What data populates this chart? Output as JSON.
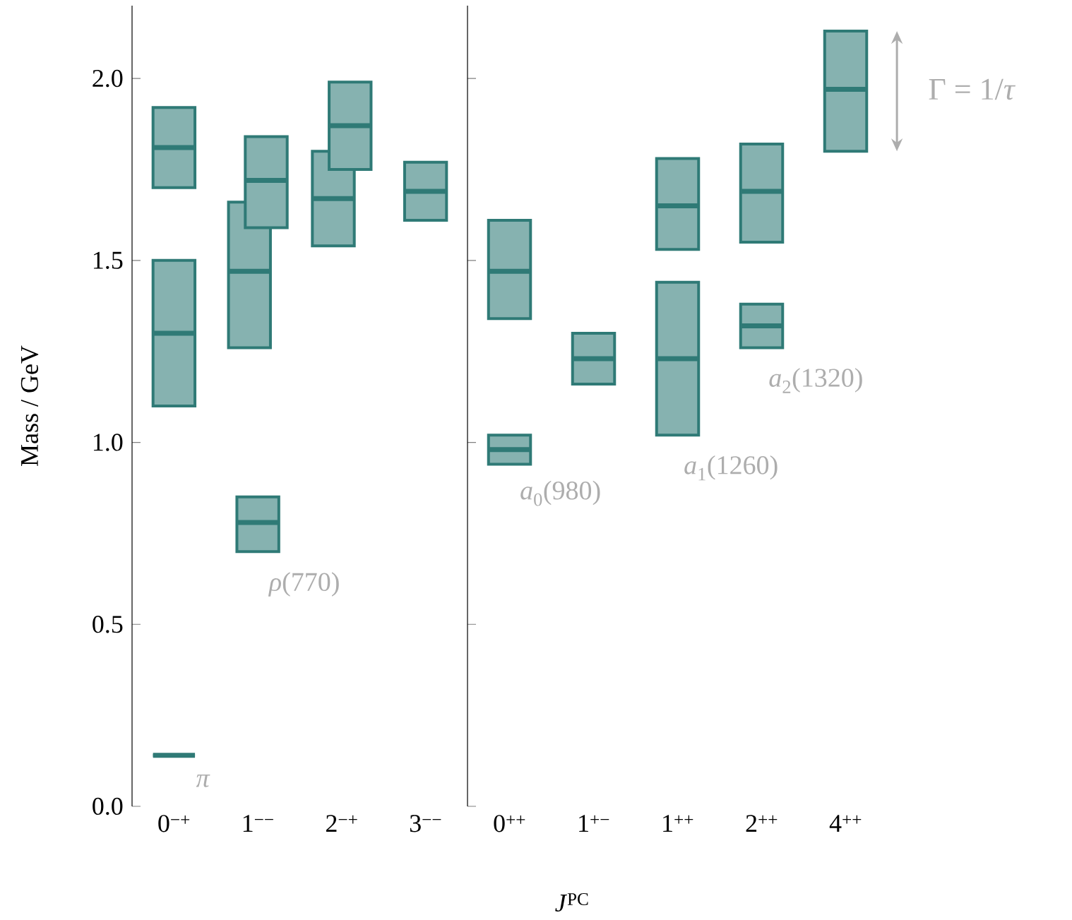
{
  "chart_data": [
    {
      "type": "box",
      "ylabel": "Mass / GeV",
      "categories": [
        "0$^{−+}$",
        "1$^{−−}$",
        "2$^{−+}$",
        "3$^{−−}$"
      ],
      "ylim": [
        0,
        2.2
      ],
      "yticks": [
        {
          "value": 0,
          "label": "0.0"
        },
        {
          "value": 0.5,
          "label": "0.5"
        },
        {
          "value": 1,
          "label": "1.0"
        },
        {
          "value": 1.5,
          "label": "1.5"
        },
        {
          "value": 2,
          "label": "2.0"
        }
      ],
      "series": [
        {
          "color": "#2f7a76",
          "boxes": [
            null,
            {
              "low": 1.26,
              "q1": 1.26,
              "median": 1.47,
              "q3": 1.66,
              "high": 1.66
            },
            {
              "low": 1.54,
              "q1": 1.54,
              "median": 1.67,
              "q3": 1.8,
              "high": 1.8
            },
            null
          ]
        },
        {
          "color": "#2f7a76",
          "boxes": [
            null,
            {
              "low": 1.59,
              "q1": 1.59,
              "median": 1.72,
              "q3": 1.84,
              "high": 1.84
            },
            {
              "low": 1.75,
              "q1": 1.75,
              "median": 1.87,
              "q3": 1.99,
              "high": 1.99
            },
            null
          ]
        },
        {
          "color": "#2f7a76",
          "boxes": [
            {
              "low": 0.14,
              "q1": 0.14,
              "median": 0.14,
              "q3": 0.14,
              "high": 0.14
            },
            {
              "low": 0.7,
              "q1": 0.7,
              "median": 0.78,
              "q3": 0.85,
              "high": 0.85
            },
            null,
            {
              "low": 1.61,
              "q1": 1.61,
              "median": 1.69,
              "q3": 1.77,
              "high": 1.77
            }
          ]
        },
        {
          "color": "#2f7a76",
          "boxes": [
            {
              "low": 1.1,
              "q1": 1.1,
              "median": 1.3,
              "q3": 1.5,
              "high": 1.5
            },
            null,
            null,
            null
          ]
        },
        {
          "color": "#2f7a76",
          "boxes": [
            {
              "low": 1.7,
              "q1": 1.7,
              "median": 1.81,
              "q3": 1.92,
              "high": 1.92
            },
            null,
            null,
            null
          ]
        }
      ],
      "annotations": [
        "*π*",
        "*ρ*(770)"
      ]
    },
    {
      "type": "box",
      "xlabel": "*J*$^{PC}$",
      "categories": [
        "0$^{++}$",
        "1$^{+−}$",
        "1$^{++}$",
        "2$^{++}$",
        "4$^{++}$"
      ],
      "ylim": [
        0,
        2.2
      ],
      "yticks": [
        0,
        0.5,
        1,
        1.5,
        2
      ],
      "tick_labels": "x",
      "series": [
        {
          "color": "#2f7a76",
          "boxes": [
            {
              "low": 0.94,
              "q1": 0.94,
              "median": 0.98,
              "q3": 1.02,
              "high": 1.02
            },
            {
              "low": 1.16,
              "q1": 1.16,
              "median": 1.23,
              "q3": 1.3,
              "high": 1.3
            },
            {
              "low": 1.02,
              "q1": 1.02,
              "median": 1.23,
              "q3": 1.44,
              "high": 1.44
            },
            {
              "low": 1.26,
              "q1": 1.26,
              "median": 1.32,
              "q3": 1.38,
              "high": 1.38
            },
            {
              "low": 1.8,
              "q1": 1.8,
              "median": 1.97,
              "q3": 2.13,
              "high": 2.13
            }
          ]
        },
        {
          "color": "#2f7a76",
          "boxes": [
            {
              "low": 1.34,
              "q1": 1.34,
              "median": 1.47,
              "q3": 1.61,
              "high": 1.61
            },
            null,
            {
              "low": 1.53,
              "q1": 1.53,
              "median": 1.65,
              "q3": 1.78,
              "high": 1.78
            },
            {
              "low": 1.55,
              "q1": 1.55,
              "median": 1.69,
              "q3": 1.82,
              "high": 1.82
            },
            null
          ]
        }
      ],
      "annotations": [
        "*a*$_{0}$(980)",
        "*a*$_{1}$(1260)",
        "*a*$_{2}$(1320)",
        "Γ = 1/*τ*"
      ]
    }
  ]
}
